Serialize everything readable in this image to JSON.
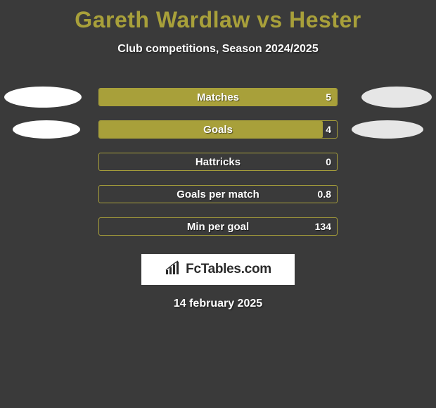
{
  "title": {
    "text": "Gareth Wardlaw vs Hester",
    "color": "#a8a03a",
    "fontsize": 32
  },
  "subtitle": "Club competitions, Season 2024/2025",
  "colors": {
    "bar_fill": "#a8a03a",
    "bar_border": "#a8a03a",
    "ellipse_left": "#ffffff",
    "ellipse_right": "#e6e6e6",
    "background": "#3a3a3a",
    "text_white": "#ffffff"
  },
  "rows": [
    {
      "label": "Matches",
      "value_text": "5",
      "fill_pct": 100,
      "left_ellipse": "big",
      "right_ellipse": "big"
    },
    {
      "label": "Goals",
      "value_text": "4",
      "fill_pct": 94,
      "left_ellipse": "small",
      "right_ellipse": "small"
    },
    {
      "label": "Hattricks",
      "value_text": "0",
      "fill_pct": 0,
      "left_ellipse": null,
      "right_ellipse": null
    },
    {
      "label": "Goals per match",
      "value_text": "0.8",
      "fill_pct": 0,
      "left_ellipse": null,
      "right_ellipse": null
    },
    {
      "label": "Min per goal",
      "value_text": "134",
      "fill_pct": 0,
      "left_ellipse": null,
      "right_ellipse": null
    }
  ],
  "logo": {
    "text": "FcTables.com",
    "icon_color": "#2a2a2a"
  },
  "date_line": "14 february 2025"
}
